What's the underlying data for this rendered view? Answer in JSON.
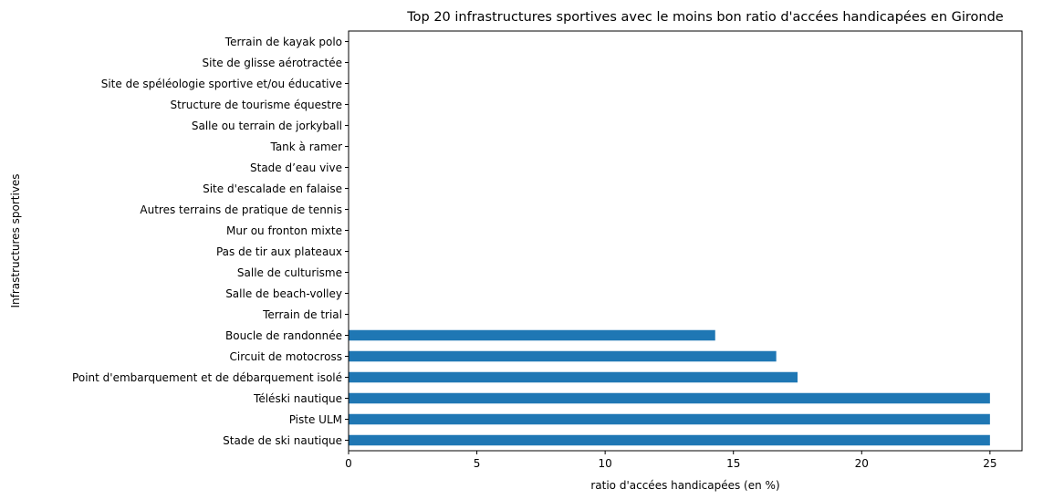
{
  "chart_data": {
    "type": "bar",
    "orientation": "horizontal",
    "title": "Top 20 infrastructures sportives avec le moins bon ratio d'accées handicapées en Gironde",
    "xlabel": "ratio d'accées handicapées (en %)",
    "ylabel": "Infrastructures sportives",
    "xlim": [
      0,
      26.25
    ],
    "xticks": [
      "0",
      "5",
      "10",
      "15",
      "20",
      "25"
    ],
    "grid": false,
    "bar_color": "#1f77b4",
    "categories": [
      "Stade de ski nautique",
      "Piste ULM",
      "Téléski nautique",
      "Point d'embarquement et de débarquement isolé",
      "Circuit de motocross",
      "Boucle de randonnée",
      "Terrain de trial",
      "Salle de beach-volley",
      "Salle de culturisme",
      "Pas de tir aux plateaux",
      "Mur ou fronton mixte",
      "Autres terrains de pratique de tennis",
      "Site d'escalade en falaise",
      "Stade d’eau vive",
      "Tank à ramer",
      "Salle ou terrain de jorkyball",
      "Structure de tourisme équestre",
      "Site de spéléologie sportive et/ou éducative",
      "Site de glisse aérotractée",
      "Terrain de kayak polo"
    ],
    "values": [
      25,
      25,
      25,
      17.5,
      16.67,
      14.29,
      0,
      0,
      0,
      0,
      0,
      0,
      0,
      0,
      0,
      0,
      0,
      0,
      0,
      0
    ]
  }
}
